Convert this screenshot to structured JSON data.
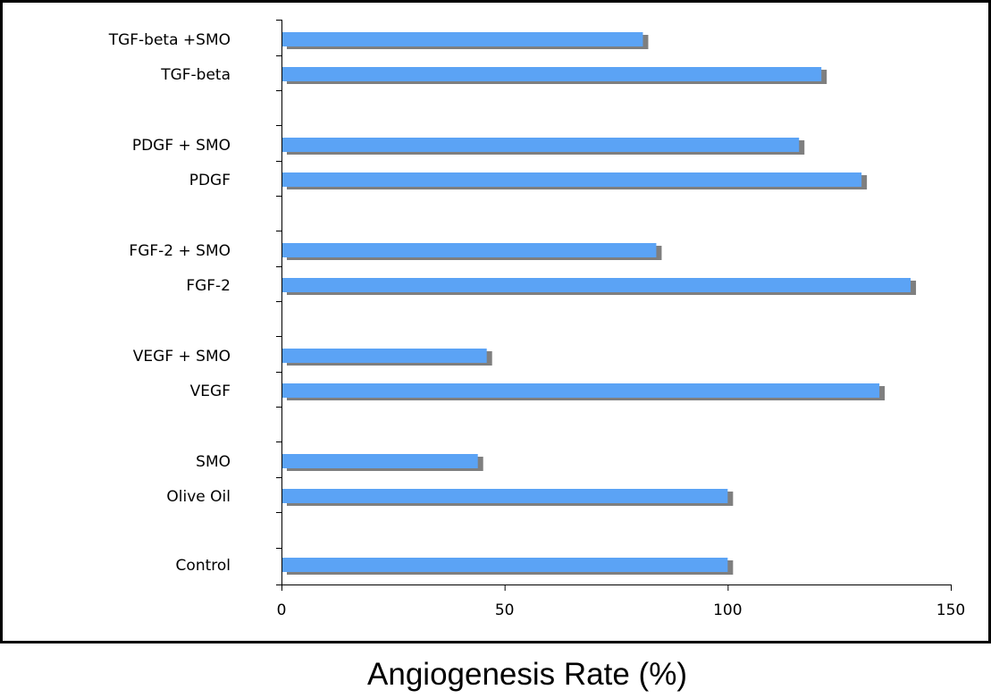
{
  "chart_data": {
    "type": "bar",
    "orientation": "horizontal",
    "categories": [
      "Control",
      "Olive Oil",
      "SMO",
      "VEGF",
      "VEGF + SMO",
      "FGF-2",
      "FGF-2 + SMO",
      "PDGF",
      "PDGF + SMO",
      "TGF-beta",
      "TGF-beta +SMO"
    ],
    "values": [
      100,
      100,
      44,
      134,
      46,
      141,
      84,
      130,
      116,
      121,
      81
    ],
    "xlabel": "Angiogenesis Rate (%)",
    "xlim": [
      0,
      150
    ],
    "xticks": [
      0,
      50,
      100,
      150
    ],
    "grid": false,
    "legend": "none",
    "colors": {
      "bar": "#5ba3f5",
      "shadow": "#7f7f7f"
    }
  }
}
